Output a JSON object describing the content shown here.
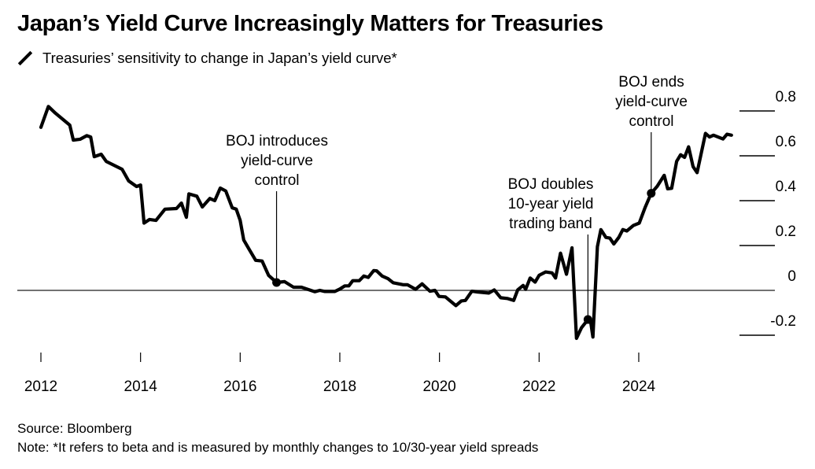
{
  "title": "Japan’s Yield Curve Increasingly Matters for Treasuries",
  "subtitle": "Treasuries’ sensitivity to change in Japan’s yield curve*",
  "legend_icon": "diagonal-line-icon",
  "source": "Source: Bloomberg",
  "note": "Note: *It refers to beta and is measured by monthly changes to 10/30-year yield spreads",
  "chart_data": {
    "type": "line",
    "title": "Japan’s Yield Curve Increasingly Matters for Treasuries",
    "xlabel": "",
    "ylabel": "",
    "xlim": [
      2012,
      2026
    ],
    "ylim": [
      -0.3,
      0.85
    ],
    "x_ticks": [
      "2012",
      "2014",
      "2016",
      "2018",
      "2020",
      "2022",
      "2024"
    ],
    "y_ticks": [
      "0.8",
      "0.6",
      "0.4",
      "0.2",
      "0",
      "-0.2"
    ],
    "y_tick_values": [
      0.8,
      0.6,
      0.4,
      0.2,
      0,
      -0.2
    ],
    "x_tick_values": [
      2012,
      2014,
      2016,
      2018,
      2020,
      2022,
      2024
    ],
    "grid": "short horizontal rules at right beside y tick labels; zero line full width",
    "line_color": "#000000",
    "series": [
      {
        "x": [
          2012.0,
          2012.15,
          2012.29,
          2012.47,
          2012.58,
          2012.65,
          2012.79,
          2012.92,
          2013.0,
          2013.07,
          2013.21,
          2013.31,
          2013.63,
          2013.76,
          2013.92,
          2014.0,
          2014.07,
          2014.18,
          2014.31,
          2014.49,
          2014.72,
          2014.82,
          2014.92,
          2014.97,
          2015.13,
          2015.24,
          2015.39,
          2015.49,
          2015.6,
          2015.71,
          2015.84,
          2015.92,
          2016.0,
          2016.07,
          2016.18,
          2016.31,
          2016.44,
          2016.57,
          2016.73,
          2016.89,
          2017.07,
          2017.23,
          2017.5,
          2017.6,
          2017.7,
          2017.9,
          2018.0,
          2018.1,
          2018.18,
          2018.26,
          2018.39,
          2018.48,
          2018.57,
          2018.68,
          2018.74,
          2018.85,
          2018.97,
          2019.07,
          2019.18,
          2019.28,
          2019.36,
          2019.52,
          2019.65,
          2019.81,
          2019.91,
          2019.99,
          2020.12,
          2020.33,
          2020.44,
          2020.52,
          2020.65,
          2020.76,
          2020.99,
          2021.1,
          2021.23,
          2021.36,
          2021.49,
          2021.57,
          2021.68,
          2021.73,
          2021.82,
          2021.92,
          2022.0,
          2022.13,
          2022.26,
          2022.33,
          2022.43,
          2022.55,
          2022.66,
          2022.75,
          2022.85,
          2022.98,
          2023.03,
          2023.08,
          2023.17,
          2023.24,
          2023.34,
          2023.42,
          2023.5,
          2023.6,
          2023.68,
          2023.76,
          2023.89,
          2024.01,
          2024.13,
          2024.25,
          2024.37,
          2024.51,
          2024.58,
          2024.66,
          2024.76,
          2024.84,
          2024.92,
          2025.0,
          2025.09,
          2025.17,
          2025.34,
          2025.42,
          2025.5,
          2025.69,
          2025.77,
          2025.86
        ],
        "y": [
          0.727,
          0.82,
          0.79,
          0.757,
          0.737,
          0.67,
          0.674,
          0.69,
          0.684,
          0.596,
          0.607,
          0.575,
          0.54,
          0.488,
          0.463,
          0.47,
          0.3,
          0.316,
          0.312,
          0.362,
          0.365,
          0.389,
          0.326,
          0.43,
          0.42,
          0.372,
          0.41,
          0.4,
          0.456,
          0.443,
          0.368,
          0.362,
          0.312,
          0.225,
          0.183,
          0.134,
          0.131,
          0.067,
          0.035,
          0.039,
          0.014,
          0.014,
          -0.006,
          0.0,
          -0.005,
          -0.005,
          0.006,
          0.02,
          0.02,
          0.043,
          0.043,
          0.064,
          0.058,
          0.088,
          0.087,
          0.064,
          0.052,
          0.034,
          0.029,
          0.025,
          0.025,
          0.005,
          0.029,
          -0.004,
          0.0,
          -0.027,
          -0.029,
          -0.068,
          -0.047,
          -0.045,
          -0.004,
          -0.007,
          -0.012,
          0.002,
          -0.033,
          -0.036,
          -0.045,
          0.002,
          0.022,
          0.005,
          0.055,
          0.037,
          0.067,
          0.082,
          0.078,
          0.055,
          0.166,
          0.072,
          0.19,
          -0.214,
          -0.167,
          -0.13,
          -0.132,
          -0.208,
          0.195,
          0.271,
          0.236,
          0.233,
          0.207,
          0.236,
          0.271,
          0.265,
          0.289,
          0.3,
          0.371,
          0.433,
          0.464,
          0.513,
          0.453,
          0.455,
          0.575,
          0.605,
          0.593,
          0.64,
          0.552,
          0.525,
          0.7,
          0.684,
          0.692,
          0.675,
          0.696,
          0.692
        ]
      }
    ],
    "annotations": [
      {
        "lines": [
          "BOJ introduces",
          "yield-curve",
          "control"
        ],
        "x": 2016.73,
        "y": 0.035
      },
      {
        "lines": [
          "BOJ doubles",
          "10-year yield",
          "trading band"
        ],
        "x": 2022.98,
        "y": -0.13
      },
      {
        "lines": [
          "BOJ ends",
          "yield-curve",
          "control"
        ],
        "x": 2024.25,
        "y": 0.433
      }
    ]
  }
}
